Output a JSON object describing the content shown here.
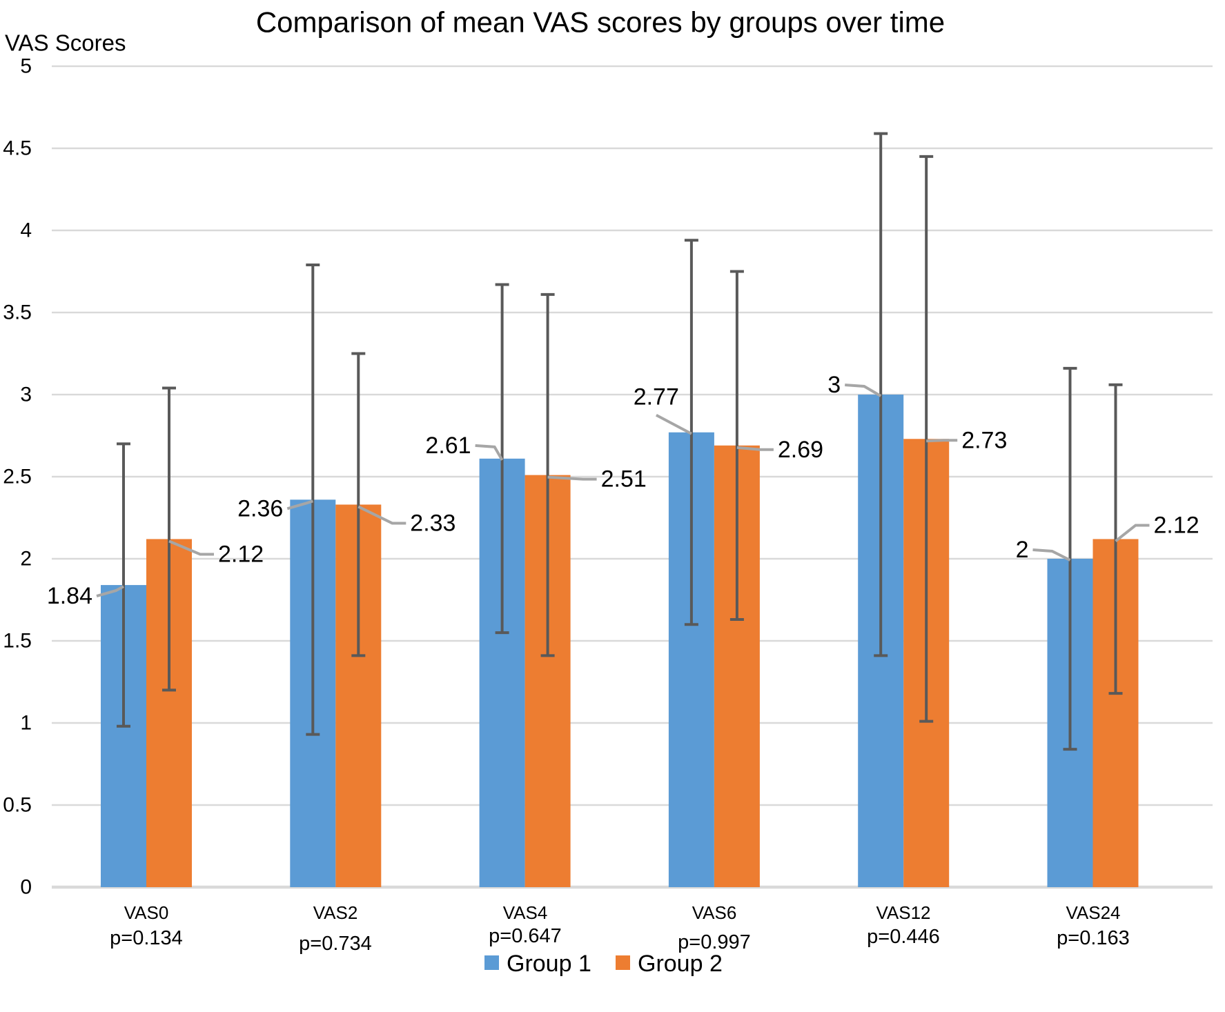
{
  "title": "Comparison of mean VAS scores by groups over time",
  "y_axis": {
    "title": "VAS Scores",
    "ticks": [
      "5",
      "4.5",
      "4",
      "3.5",
      "3",
      "2.5",
      "2",
      "1.5",
      "1",
      "0.5",
      "0"
    ],
    "min": 0,
    "max": 5,
    "step": 0.5
  },
  "x_axis": {
    "categories": [
      "VAS0",
      "VAS2",
      "VAS4",
      "VAS6",
      "VAS12",
      "VAS24"
    ],
    "p_values": [
      "p=0.134",
      "p=0.734",
      "p=0.647",
      "p=0.997",
      "p=0.446",
      "p=0.163"
    ]
  },
  "legend": [
    {
      "label": "Group 1",
      "color": "#5B9BD5"
    },
    {
      "label": "Group 2",
      "color": "#ED7D31"
    }
  ],
  "chart_data": {
    "type": "bar",
    "title": "Comparison of mean VAS scores by groups over time",
    "ylabel": "VAS Scores",
    "ylim": [
      0,
      5
    ],
    "ystep": 0.5,
    "grid": true,
    "legend_position": "bottom",
    "categories": [
      "VAS0",
      "VAS2",
      "VAS4",
      "VAS6",
      "VAS12",
      "VAS24"
    ],
    "p_values": [
      "p=0.134",
      "p=0.734",
      "p=0.647",
      "p=0.997",
      "p=0.446",
      "p=0.163"
    ],
    "series": [
      {
        "name": "Group 1",
        "color": "#5B9BD5",
        "values": [
          1.84,
          2.36,
          2.61,
          2.77,
          3,
          2
        ],
        "labels": [
          "1.84",
          "2.36",
          "2.61",
          "2.77",
          "3",
          "2"
        ],
        "error_low": [
          0.98,
          0.93,
          1.55,
          1.6,
          1.41,
          0.84
        ],
        "error_high": [
          2.7,
          3.79,
          3.67,
          3.94,
          4.59,
          3.16
        ],
        "label_side": "left"
      },
      {
        "name": "Group 2",
        "color": "#ED7D31",
        "values": [
          2.12,
          2.33,
          2.51,
          2.69,
          2.73,
          2.12
        ],
        "labels": [
          "2.12",
          "2.33",
          "2.51",
          "2.69",
          "2.73",
          "2.12"
        ],
        "error_low": [
          1.2,
          1.41,
          1.41,
          1.63,
          1.01,
          1.18
        ],
        "error_high": [
          3.04,
          3.25,
          3.61,
          3.75,
          4.45,
          3.06
        ],
        "label_side": "right"
      }
    ],
    "colors": {
      "gridline": "#D9D9D9",
      "axis_line": "#D9D9D9",
      "error_bar": "#595959",
      "leader_line": "#A6A6A6",
      "label_text": "#000000"
    }
  }
}
